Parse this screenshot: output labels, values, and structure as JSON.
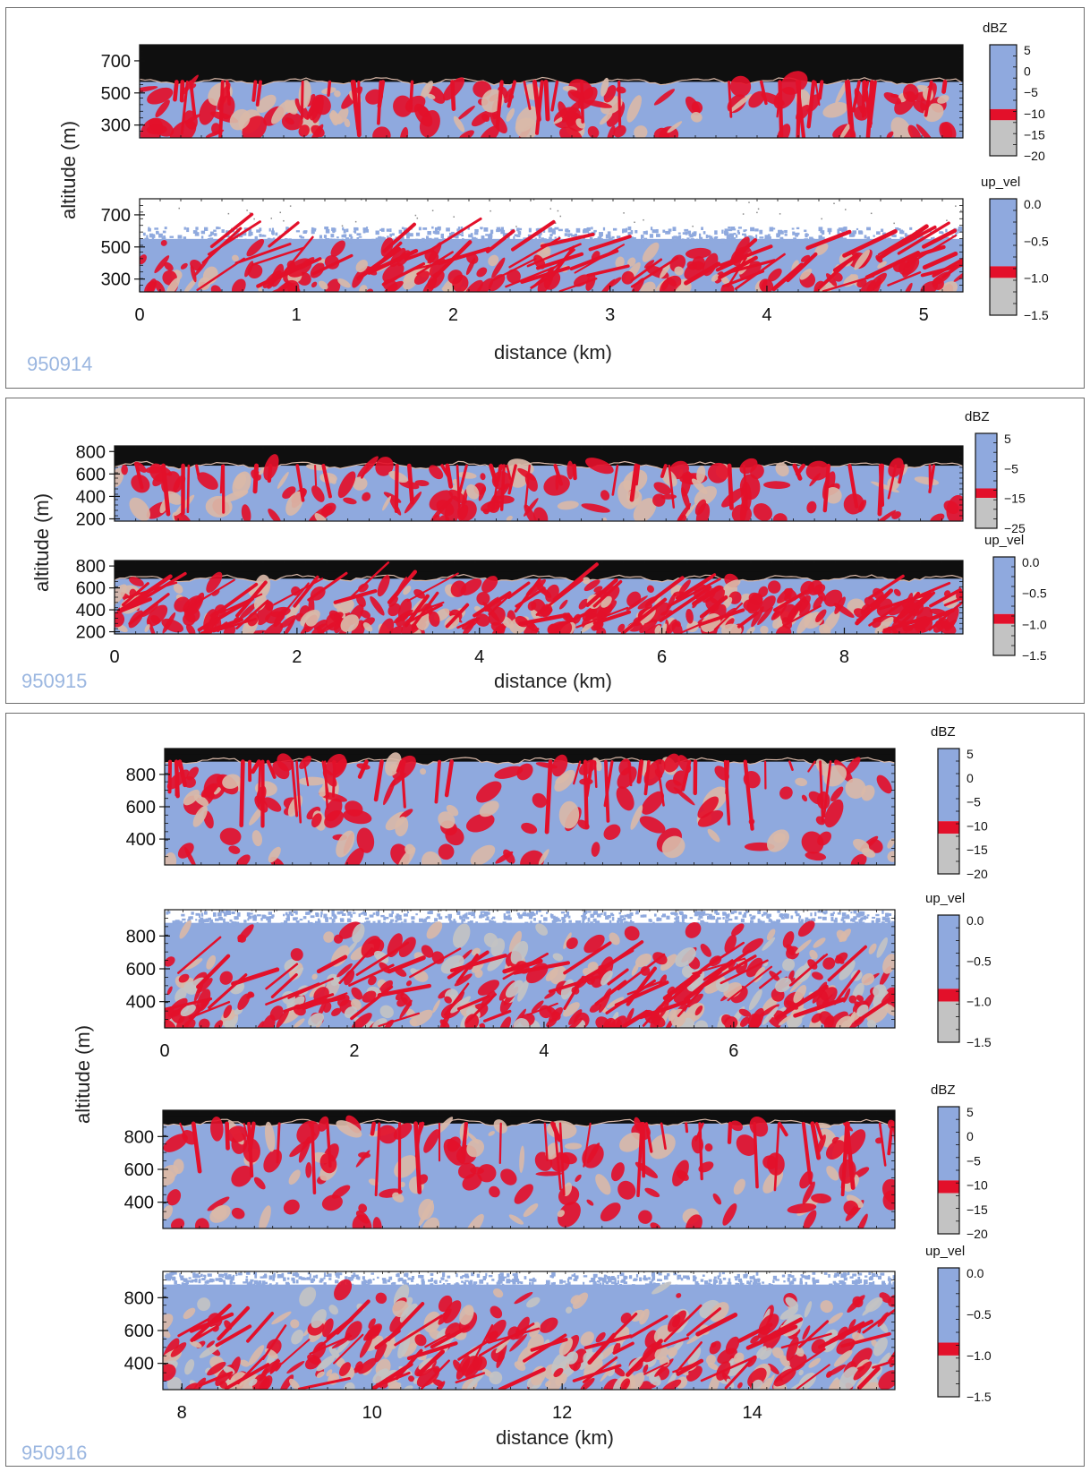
{
  "colors": {
    "background_blue": "#8fa9de",
    "red": "#e3102a",
    "pale": "#d9b8a8",
    "gray": "#c3c3c3",
    "black": "#0f0f0f",
    "date_text": "#9ab6e0"
  },
  "panels": [
    {
      "date": "950914",
      "ylabel": "altitude (m)",
      "xlabel": "distance (km)"
    },
    {
      "date": "950915",
      "ylabel": "altitude (m)",
      "xlabel": "distance (km)"
    },
    {
      "date": "950916",
      "ylabel": "altitude (m)",
      "xlabel": "distance (km)"
    }
  ],
  "chart_data": [
    {
      "type": "heatmap",
      "panel": 0,
      "variable": "dBZ",
      "xlim": [
        0,
        5.25
      ],
      "ylim": [
        220,
        800
      ],
      "yticks": [
        300,
        500,
        700
      ],
      "xticks": [],
      "colorbar_title": "dBZ",
      "colorbar_labels": [
        "5",
        "0",
        "−5",
        "−10",
        "−15",
        "−20"
      ],
      "cloud_top": 580,
      "style": "dbz"
    },
    {
      "type": "heatmap",
      "panel": 0,
      "variable": "up_vel",
      "xlim": [
        0,
        5.25
      ],
      "ylim": [
        220,
        800
      ],
      "yticks": [
        300,
        500,
        700
      ],
      "xticks": [
        0,
        1,
        2,
        3,
        4,
        5
      ],
      "colorbar_title": "up_vel",
      "colorbar_labels": [
        "0.0",
        "−0.5",
        "−1.0",
        "−1.5"
      ],
      "cloud_top": 550,
      "style": "vel_light"
    },
    {
      "type": "heatmap",
      "panel": 1,
      "variable": "dBZ",
      "xlim": [
        0,
        9.3
      ],
      "ylim": [
        180,
        850
      ],
      "yticks": [
        200,
        400,
        600,
        800
      ],
      "xticks": [],
      "colorbar_title": "dBZ",
      "colorbar_labels": [
        "5",
        "−5",
        "−15",
        "−25"
      ],
      "cloud_top": 690,
      "style": "dbz"
    },
    {
      "type": "heatmap",
      "panel": 1,
      "variable": "up_vel",
      "xlim": [
        0,
        9.3
      ],
      "ylim": [
        180,
        850
      ],
      "yticks": [
        200,
        400,
        600,
        800
      ],
      "xticks": [
        0,
        2,
        4,
        6,
        8
      ],
      "colorbar_title": "up_vel",
      "colorbar_labels": [
        "0.0",
        "−0.5",
        "−1.0",
        "−1.5"
      ],
      "cloud_top": 700,
      "style": "vel_dark"
    },
    {
      "type": "heatmap",
      "panel": 2,
      "variable": "dBZ",
      "xlim": [
        0,
        7.7
      ],
      "ylim": [
        240,
        960
      ],
      "yticks": [
        400,
        600,
        800
      ],
      "xticks": [],
      "colorbar_title": "dBZ",
      "colorbar_labels": [
        "5",
        "0",
        "−5",
        "−10",
        "−15",
        "−20"
      ],
      "cloud_top": 890,
      "style": "dbz"
    },
    {
      "type": "heatmap",
      "panel": 2,
      "variable": "up_vel",
      "xlim": [
        0,
        7.7
      ],
      "ylim": [
        240,
        960
      ],
      "yticks": [
        400,
        600,
        800
      ],
      "xticks": [
        0,
        2,
        4,
        6
      ],
      "colorbar_title": "up_vel",
      "colorbar_labels": [
        "0.0",
        "−0.5",
        "−1.0",
        "−1.5"
      ],
      "cloud_top": 880,
      "style": "vel_gray"
    },
    {
      "type": "heatmap",
      "panel": 2,
      "variable": "dBZ",
      "xlim": [
        7.8,
        15.5
      ],
      "ylim": [
        240,
        960
      ],
      "yticks": [
        400,
        600,
        800
      ],
      "xticks": [],
      "colorbar_title": "dBZ",
      "colorbar_labels": [
        "5",
        "0",
        "−5",
        "−10",
        "−15",
        "−20"
      ],
      "cloud_top": 890,
      "style": "dbz"
    },
    {
      "type": "heatmap",
      "panel": 2,
      "variable": "up_vel",
      "xlim": [
        7.8,
        15.5
      ],
      "ylim": [
        240,
        960
      ],
      "yticks": [
        400,
        600,
        800
      ],
      "xticks": [
        8,
        10,
        12,
        14
      ],
      "colorbar_title": "up_vel",
      "colorbar_labels": [
        "0.0",
        "−0.5",
        "−1.0",
        "−1.5"
      ],
      "cloud_top": 880,
      "style": "vel_gray"
    }
  ]
}
